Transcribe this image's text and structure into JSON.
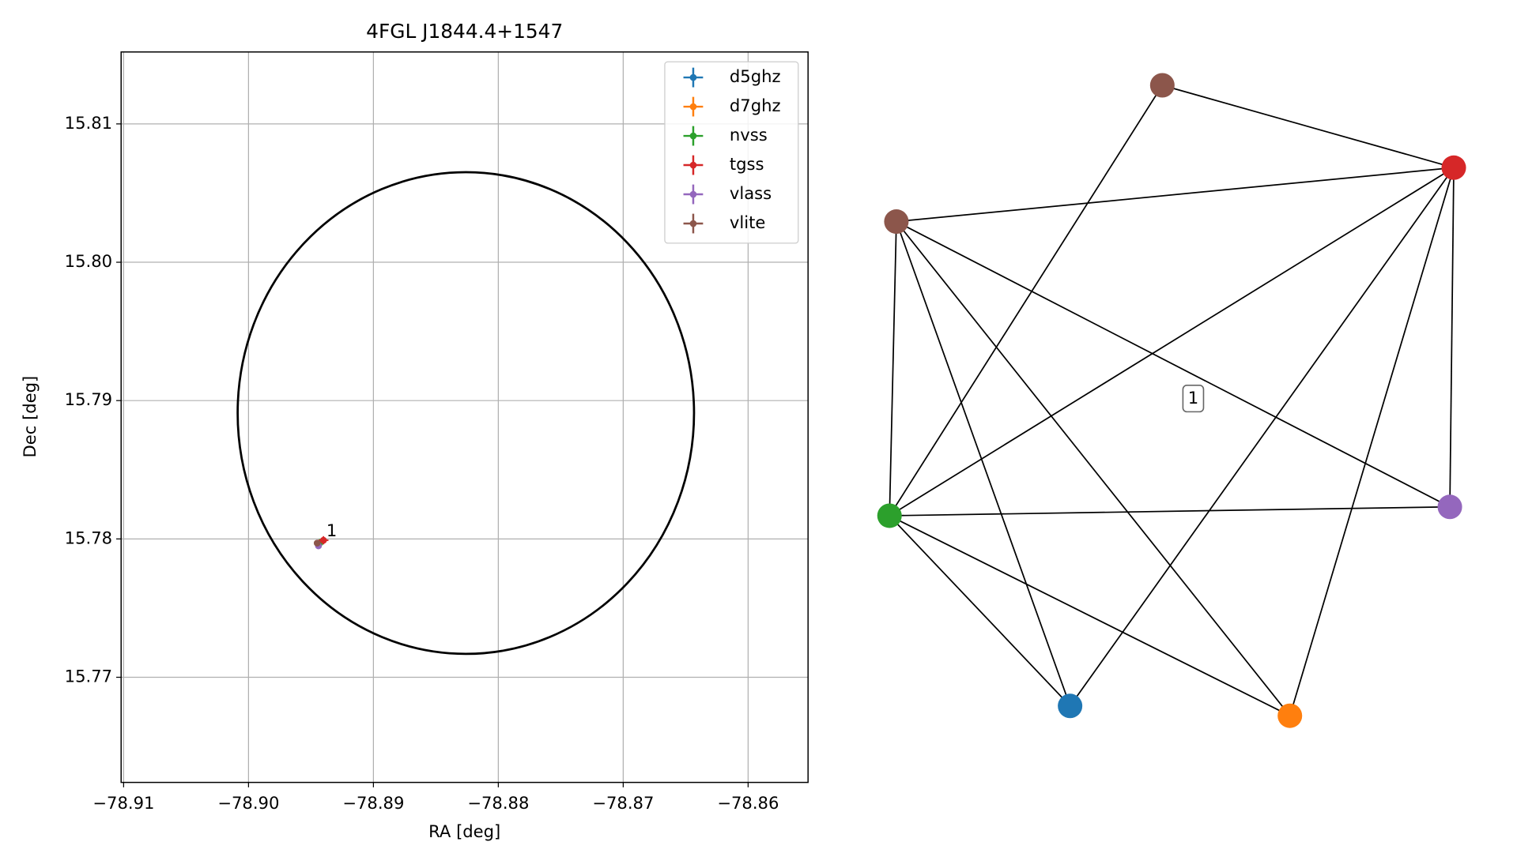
{
  "chart_data": [
    {
      "type": "scatter",
      "title": "4FGL J1844.4+1547",
      "xlabel": "RA [deg]",
      "ylabel": "Dec [deg]",
      "xlim": [
        -78.9102,
        -78.8552
      ],
      "ylim": [
        15.7624,
        15.8152
      ],
      "xticks": [
        {
          "value": -78.91,
          "label": "−78.91"
        },
        {
          "value": -78.9,
          "label": "−78.90"
        },
        {
          "value": -78.89,
          "label": "−78.89"
        },
        {
          "value": -78.88,
          "label": "−78.88"
        },
        {
          "value": -78.87,
          "label": "−78.87"
        },
        {
          "value": -78.86,
          "label": "−78.86"
        }
      ],
      "yticks": [
        15.77,
        15.78,
        15.79,
        {
          "value": 15.8,
          "label": "15.80"
        },
        15.81
      ],
      "grid": true,
      "legend": "upper right",
      "circle": {
        "center": [
          -78.8826,
          15.7891
        ],
        "width": 0.03654,
        "height": 0.03482,
        "color": "#000000"
      },
      "series": [
        {
          "name": "d5ghz",
          "color": "#1f77b4",
          "x": [
            -78.8944
          ],
          "values": [
            15.7796
          ],
          "xerr": [
            0.0002
          ],
          "yerr": [
            0.0002
          ]
        },
        {
          "name": "d7ghz",
          "color": "#ff7f0e",
          "x": [
            -78.8944
          ],
          "values": [
            15.7796
          ],
          "xerr": [
            0.0002
          ],
          "yerr": [
            0.0002
          ]
        },
        {
          "name": "nvss",
          "color": "#2ca02c",
          "x": [
            -78.8943
          ],
          "values": [
            15.7797
          ],
          "xerr": [
            0.0003
          ],
          "yerr": [
            0.0003
          ]
        },
        {
          "name": "tgss",
          "color": "#d62728",
          "x": [
            -78.894
          ],
          "values": [
            15.7799
          ],
          "xerr": [
            0.0004
          ],
          "yerr": [
            0.0003
          ]
        },
        {
          "name": "vlass",
          "color": "#9467bd",
          "x": [
            -78.8944
          ],
          "values": [
            15.7795
          ],
          "xerr": [
            0.0001
          ],
          "yerr": [
            0.0001
          ]
        },
        {
          "name": "vlite",
          "color": "#8c564b",
          "x": [
            -78.8945
          ],
          "values": [
            15.7797
          ],
          "xerr": [
            0.0002
          ],
          "yerr": [
            0.0002
          ]
        }
      ],
      "annotations": [
        {
          "text": "1",
          "x": -78.894,
          "y": 15.7799
        }
      ]
    },
    {
      "type": "network",
      "nodes": [
        {
          "color": "#8c564b"
        },
        {
          "color": "#d62728"
        },
        {
          "color": "#8c564b"
        },
        {
          "color": "#9467bd"
        },
        {
          "color": "#2ca02c"
        },
        {
          "color": "#1f77b4"
        },
        {
          "color": "#ff7f0e"
        }
      ],
      "edges": [
        [
          0,
          1
        ],
        [
          0,
          4
        ],
        [
          2,
          1
        ],
        [
          2,
          4
        ],
        [
          2,
          5
        ],
        [
          2,
          6
        ],
        [
          2,
          3
        ],
        [
          1,
          4
        ],
        [
          1,
          5
        ],
        [
          1,
          6
        ],
        [
          1,
          3
        ],
        [
          4,
          3
        ],
        [
          4,
          5
        ],
        [
          4,
          6
        ]
      ],
      "label": "1"
    }
  ]
}
